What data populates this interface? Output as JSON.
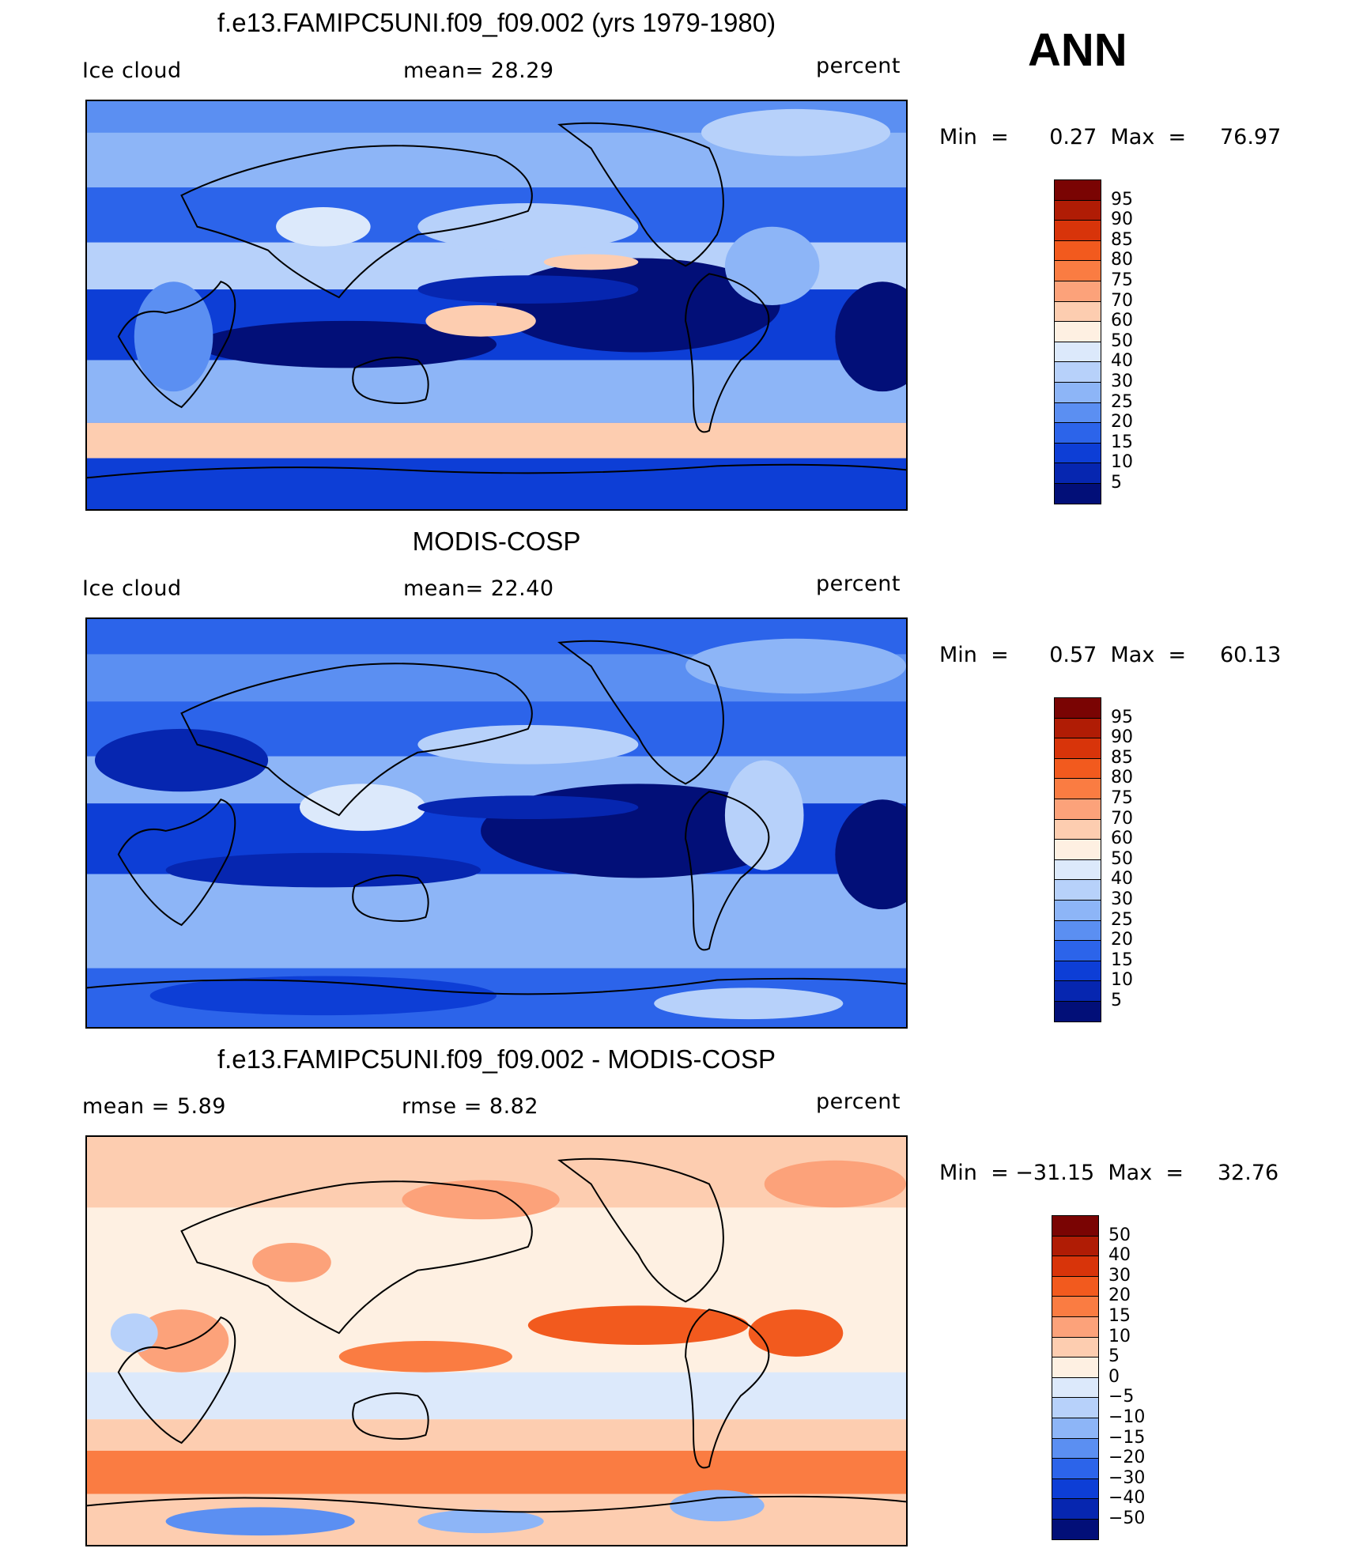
{
  "season": "ANN",
  "panels": [
    {
      "title": "f.e13.FAMIPC5UNI.f09_f09.002 (yrs 1979-1980)",
      "left_label": "Ice cloud",
      "center_label": "mean=   28.29",
      "units": "percent",
      "minmax": "Min  =      0.27  Max  =     76.97",
      "palette": "abs"
    },
    {
      "title": "MODIS-COSP",
      "left_label": "Ice cloud",
      "center_label": "mean=   22.40",
      "units": "percent",
      "minmax": "Min  =      0.57  Max  =     60.13",
      "palette": "abs"
    },
    {
      "title": "f.e13.FAMIPC5UNI.f09_f09.002 - MODIS-COSP",
      "left_label": "mean  =     5.89",
      "center_label": "rmse  =     8.82",
      "units": "percent",
      "minmax": "Min  = −31.15  Max  =     32.76",
      "palette": "diff"
    }
  ],
  "colorbars": {
    "abs": {
      "labels": [
        "95",
        "90",
        "85",
        "80",
        "75",
        "70",
        "60",
        "50",
        "40",
        "30",
        "25",
        "20",
        "15",
        "10",
        "5"
      ],
      "colors": [
        "#7a0403",
        "#b01c05",
        "#d8340a",
        "#f25a1e",
        "#fa7c42",
        "#fca27a",
        "#fdcdb0",
        "#fef0e2",
        "#dce9fb",
        "#b7d1fa",
        "#8db5f7",
        "#5b8ff2",
        "#2c64ea",
        "#0d3ed6",
        "#0626b0",
        "#020f78"
      ]
    },
    "diff": {
      "labels": [
        "50",
        "40",
        "30",
        "20",
        "15",
        "10",
        "5",
        "0",
        "−5",
        "−10",
        "−15",
        "−20",
        "−30",
        "−40",
        "−50"
      ],
      "colors": [
        "#7a0403",
        "#b01c05",
        "#d8340a",
        "#f25a1e",
        "#fa7c42",
        "#fca27a",
        "#fdcdb0",
        "#fef0e2",
        "#dce9fb",
        "#b7d1fa",
        "#8db5f7",
        "#5b8ff2",
        "#2c64ea",
        "#0d3ed6",
        "#0626b0",
        "#020f78"
      ]
    }
  }
}
